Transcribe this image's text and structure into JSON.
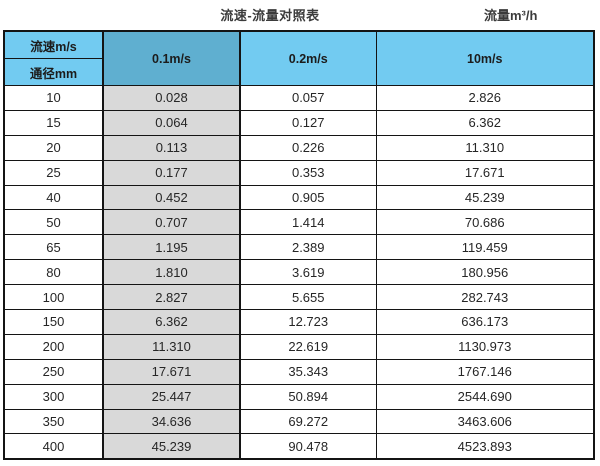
{
  "header": {
    "title": "流速-流量对照表",
    "unit_label": "流量m³/h"
  },
  "table": {
    "corner_top": "流速m/s",
    "corner_bottom": "通径mm",
    "velocity_columns": [
      "0.1m/s",
      "0.2m/s",
      "10m/s"
    ],
    "highlighted_column": "0.1m/s"
  },
  "chart_data": {
    "type": "table",
    "title": "流速-流量对照表",
    "unit": "流量m³/h",
    "column_header": "流速m/s",
    "row_header": "通径mm",
    "columns": [
      "0.1m/s",
      "0.2m/s",
      "10m/s"
    ],
    "rows": [
      {
        "diameter": "10",
        "values": [
          "0.028",
          "0.057",
          "2.826"
        ]
      },
      {
        "diameter": "15",
        "values": [
          "0.064",
          "0.127",
          "6.362"
        ]
      },
      {
        "diameter": "20",
        "values": [
          "0.113",
          "0.226",
          "11.310"
        ]
      },
      {
        "diameter": "25",
        "values": [
          "0.177",
          "0.353",
          "17.671"
        ]
      },
      {
        "diameter": "40",
        "values": [
          "0.452",
          "0.905",
          "45.239"
        ]
      },
      {
        "diameter": "50",
        "values": [
          "0.707",
          "1.414",
          "70.686"
        ]
      },
      {
        "diameter": "65",
        "values": [
          "1.195",
          "2.389",
          "119.459"
        ]
      },
      {
        "diameter": "80",
        "values": [
          "1.810",
          "3.619",
          "180.956"
        ]
      },
      {
        "diameter": "100",
        "values": [
          "2.827",
          "5.655",
          "282.743"
        ]
      },
      {
        "diameter": "150",
        "values": [
          "6.362",
          "12.723",
          "636.173"
        ]
      },
      {
        "diameter": "200",
        "values": [
          "11.310",
          "22.619",
          "1130.973"
        ]
      },
      {
        "diameter": "250",
        "values": [
          "17.671",
          "35.343",
          "1767.146"
        ]
      },
      {
        "diameter": "300",
        "values": [
          "25.447",
          "50.894",
          "2544.690"
        ]
      },
      {
        "diameter": "350",
        "values": [
          "34.636",
          "69.272",
          "3463.606"
        ]
      },
      {
        "diameter": "400",
        "values": [
          "45.239",
          "90.478",
          "4523.893"
        ]
      }
    ]
  },
  "colors": {
    "header_blue": "#72CBF1",
    "selected_header_blue": "#5FAFD0",
    "highlight_column_gray": "#D9D9D9",
    "border": "#141414",
    "text": "#262626"
  }
}
